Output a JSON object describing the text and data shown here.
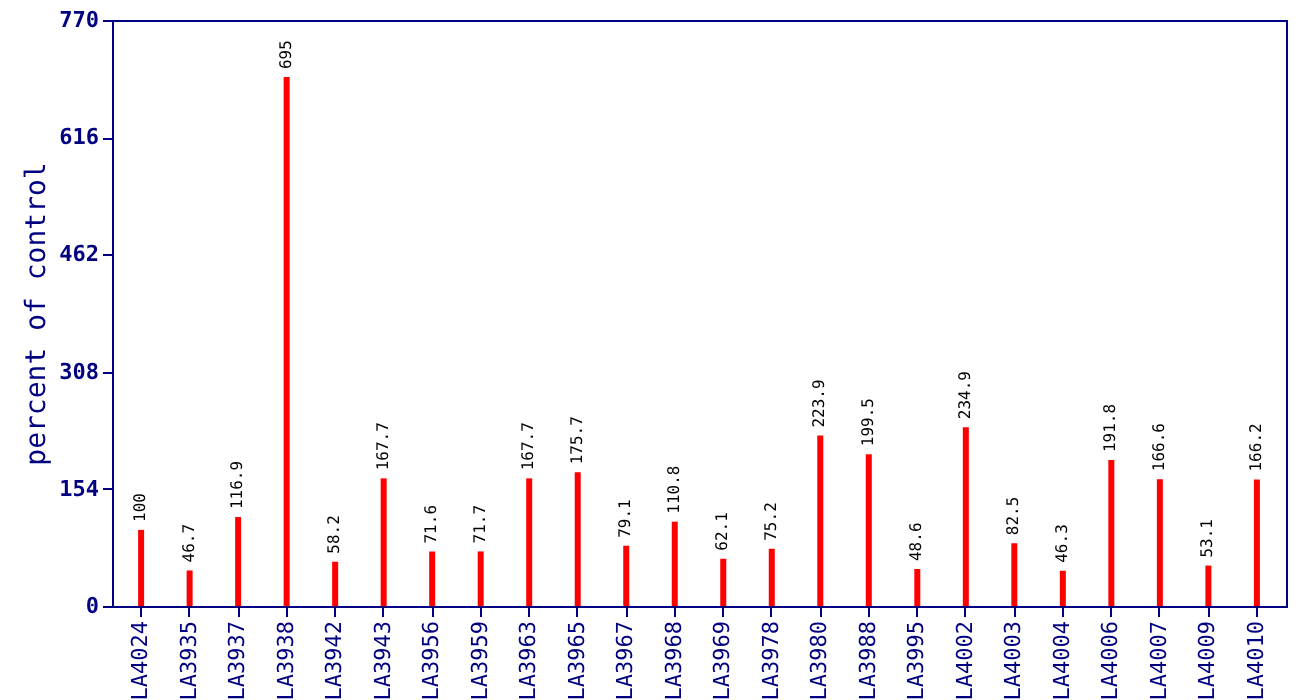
{
  "chart_data": {
    "type": "bar",
    "ylabel": "percent of control",
    "categories": [
      "LA4024",
      "LA3935",
      "LA3937",
      "LA3938",
      "LA3942",
      "LA3943",
      "LA3956",
      "LA3959",
      "LA3963",
      "LA3965",
      "LA3967",
      "LA3968",
      "LA3969",
      "LA3978",
      "LA3980",
      "LA3988",
      "LA3995",
      "LA4002",
      "LA4003",
      "LA4004",
      "LA4006",
      "LA4007",
      "LA4009",
      "LA4010"
    ],
    "values": [
      100,
      46.7,
      116.9,
      695,
      58.2,
      167.7,
      71.6,
      71.7,
      167.7,
      175.7,
      79.1,
      110.8,
      62.1,
      75.2,
      223.9,
      199.5,
      48.6,
      234.9,
      82.5,
      46.3,
      191.8,
      166.6,
      53.1,
      166.2
    ],
    "color": "#ff0000",
    "ylim": [
      0,
      770
    ],
    "yticks": [
      0,
      154,
      308,
      462,
      616,
      770
    ],
    "grid": false,
    "data_labels": true
  }
}
